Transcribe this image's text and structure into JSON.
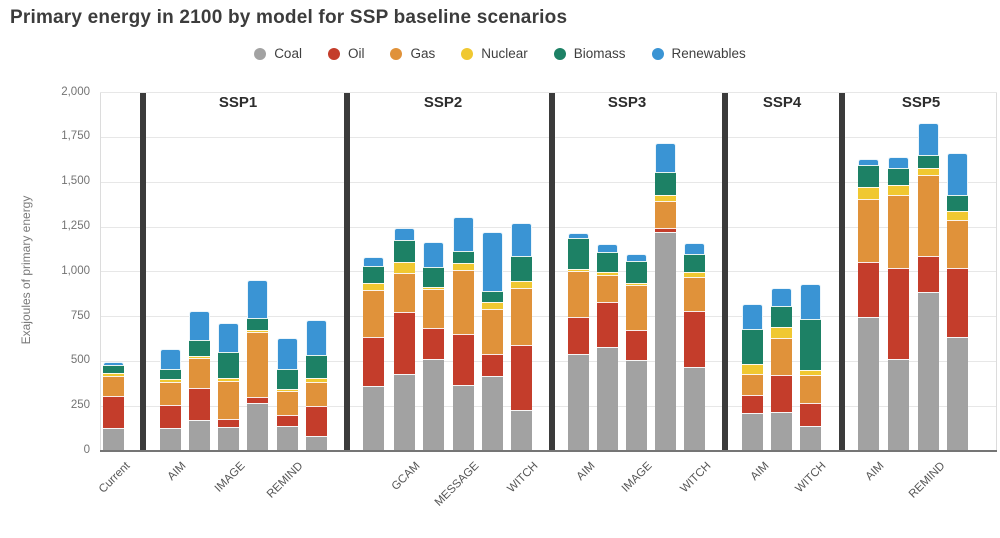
{
  "title": "Primary energy in 2100 by model for SSP baseline scenarios",
  "legend": {
    "items": [
      {
        "label": "Coal",
        "color": "#a2a2a2"
      },
      {
        "label": "Oil",
        "color": "#c43d2b"
      },
      {
        "label": "Gas",
        "color": "#e0923a"
      },
      {
        "label": "Nuclear",
        "color": "#f0c831"
      },
      {
        "label": "Biomass",
        "color": "#1d8165"
      },
      {
        "label": "Renewables",
        "color": "#3a94d4"
      }
    ]
  },
  "y_axis": {
    "title": "Exajoules of primary energy",
    "tick_labels": [
      "0",
      "250",
      "500",
      "750",
      "1,000",
      "1,250",
      "1,500",
      "1,750",
      "2,000"
    ]
  },
  "chart_data": {
    "type": "bar",
    "stacked": true,
    "title": "Primary energy in 2100 by model for SSP baseline scenarios",
    "ylabel": "Exajoules of primary energy",
    "unit": "EJ",
    "ylim": [
      0,
      2000
    ],
    "grid": true,
    "legend_position": "top-center",
    "series_order": [
      "Coal",
      "Oil",
      "Gas",
      "Nuclear",
      "Biomass",
      "Renewables"
    ],
    "series_colors": {
      "Coal": "#a2a2a2",
      "Oil": "#c43d2b",
      "Gas": "#e0923a",
      "Nuclear": "#f0c831",
      "Biomass": "#1d8165",
      "Renewables": "#3a94d4"
    },
    "groups": [
      {
        "label": "",
        "bars": [
          {
            "x_label": "Current",
            "values": {
              "Coal": 130,
              "Oil": 179,
              "Gas": 112,
              "Nuclear": 14,
              "Biomass": 45,
              "Renewables": 16
            }
          }
        ]
      },
      {
        "label": "SSP1",
        "bars": [
          {
            "x_label": "AIM",
            "values": {
              "Coal": 128,
              "Oil": 131,
              "Gas": 125,
              "Nuclear": 19,
              "Biomass": 52,
              "Renewables": 112
            }
          },
          {
            "x_label": "",
            "values": {
              "Coal": 175,
              "Oil": 175,
              "Gas": 170,
              "Nuclear": 8,
              "Biomass": 90,
              "Renewables": 158
            }
          },
          {
            "x_label": "IMAGE",
            "values": {
              "Coal": 134,
              "Oil": 45,
              "Gas": 214,
              "Nuclear": 6,
              "Biomass": 146,
              "Renewables": 161
            }
          },
          {
            "x_label": "",
            "values": {
              "Coal": 268,
              "Oil": 31,
              "Gas": 363,
              "Nuclear": 5,
              "Biomass": 68,
              "Renewables": 215
            }
          },
          {
            "x_label": "REMIND",
            "values": {
              "Coal": 141,
              "Oil": 57,
              "Gas": 137,
              "Nuclear": 5,
              "Biomass": 110,
              "Renewables": 172
            }
          },
          {
            "x_label": "",
            "values": {
              "Coal": 85,
              "Oil": 164,
              "Gas": 137,
              "Nuclear": 19,
              "Biomass": 130,
              "Renewables": 196
            }
          }
        ]
      },
      {
        "label": "SSP2",
        "bars": [
          {
            "x_label": "",
            "values": {
              "Coal": 362,
              "Oil": 274,
              "Gas": 264,
              "Nuclear": 37,
              "Biomass": 97,
              "Renewables": 47
            }
          },
          {
            "x_label": "GCAM",
            "values": {
              "Coal": 427,
              "Oil": 346,
              "Gas": 220,
              "Nuclear": 60,
              "Biomass": 122,
              "Renewables": 70
            }
          },
          {
            "x_label": "",
            "values": {
              "Coal": 513,
              "Oil": 172,
              "Gas": 219,
              "Nuclear": 8,
              "Biomass": 112,
              "Renewables": 139
            }
          },
          {
            "x_label": "MESSAGE",
            "values": {
              "Coal": 366,
              "Oil": 289,
              "Gas": 355,
              "Nuclear": 38,
              "Biomass": 67,
              "Renewables": 191
            }
          },
          {
            "x_label": "",
            "values": {
              "Coal": 418,
              "Oil": 125,
              "Gas": 249,
              "Nuclear": 37,
              "Biomass": 65,
              "Renewables": 328
            }
          },
          {
            "x_label": "WITCH",
            "values": {
              "Coal": 231,
              "Oil": 360,
              "Gas": 318,
              "Nuclear": 38,
              "Biomass": 143,
              "Renewables": 182
            }
          }
        ]
      },
      {
        "label": "SSP3",
        "bars": [
          {
            "x_label": "AIM",
            "values": {
              "Coal": 541,
              "Oil": 204,
              "Gas": 257,
              "Nuclear": 6,
              "Biomass": 172,
              "Renewables": 32
            }
          },
          {
            "x_label": "",
            "values": {
              "Coal": 582,
              "Oil": 247,
              "Gas": 152,
              "Nuclear": 20,
              "Biomass": 112,
              "Renewables": 43
            }
          },
          {
            "x_label": "IMAGE",
            "values": {
              "Coal": 507,
              "Oil": 167,
              "Gas": 252,
              "Nuclear": 5,
              "Biomass": 122,
              "Renewables": 41
            }
          },
          {
            "x_label": "",
            "values": {
              "Coal": 1221,
              "Oil": 23,
              "Gas": 149,
              "Nuclear": 34,
              "Biomass": 131,
              "Renewables": 164
            }
          },
          {
            "x_label": "WITCH",
            "values": {
              "Coal": 470,
              "Oil": 312,
              "Gas": 187,
              "Nuclear": 32,
              "Biomass": 99,
              "Renewables": 60
            }
          }
        ]
      },
      {
        "label": "SSP4",
        "bars": [
          {
            "x_label": "AIM",
            "values": {
              "Coal": 212,
              "Oil": 103,
              "Gas": 114,
              "Nuclear": 54,
              "Biomass": 200,
              "Renewables": 135
            }
          },
          {
            "x_label": "",
            "values": {
              "Coal": 216,
              "Oil": 207,
              "Gas": 208,
              "Nuclear": 63,
              "Biomass": 116,
              "Renewables": 98
            }
          },
          {
            "x_label": "WITCH",
            "values": {
              "Coal": 137,
              "Oil": 132,
              "Gas": 153,
              "Nuclear": 29,
              "Biomass": 285,
              "Renewables": 194
            }
          }
        ]
      },
      {
        "label": "SSP5",
        "bars": [
          {
            "x_label": "AIM",
            "values": {
              "Coal": 747,
              "Oil": 306,
              "Gas": 355,
              "Nuclear": 66,
              "Biomass": 125,
              "Renewables": 30
            }
          },
          {
            "x_label": "",
            "values": {
              "Coal": 515,
              "Oil": 505,
              "Gas": 410,
              "Nuclear": 52,
              "Biomass": 97,
              "Renewables": 62
            }
          },
          {
            "x_label": "REMIND",
            "values": {
              "Coal": 889,
              "Oil": 198,
              "Gas": 456,
              "Nuclear": 37,
              "Biomass": 71,
              "Renewables": 180
            }
          },
          {
            "x_label": "",
            "values": {
              "Coal": 638,
              "Oil": 382,
              "Gas": 267,
              "Nuclear": 50,
              "Biomass": 94,
              "Renewables": 233
            }
          }
        ]
      }
    ]
  }
}
